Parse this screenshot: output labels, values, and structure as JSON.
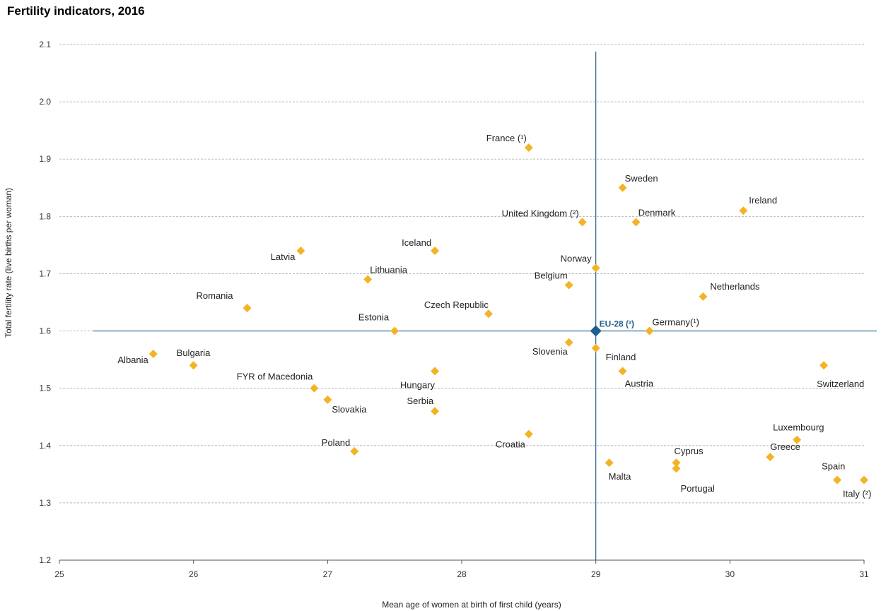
{
  "chart_data": {
    "type": "scatter",
    "title": "Fertility indicators, 2016",
    "xlabel": "Mean age of women at birth of first child (years)",
    "ylabel": "Total fertility rate (live births per woman)",
    "xlim": [
      25,
      31
    ],
    "ylim": [
      1.2,
      2.1
    ],
    "xticks": [
      "25",
      "26",
      "27",
      "28",
      "29",
      "30",
      "31"
    ],
    "yticks": [
      "1.2",
      "1.3",
      "1.4",
      "1.5",
      "1.6",
      "1.7",
      "1.8",
      "1.9",
      "2.0",
      "2.1"
    ],
    "grid": "horizontal",
    "colors": {
      "points": "#f4b324",
      "reference": "#1f5f8b",
      "grid": "#bbbbbb"
    },
    "reference": {
      "label": "EU-28 (²)",
      "x": 29.0,
      "y": 1.6
    },
    "points": [
      {
        "label": "France (¹)",
        "x": 28.5,
        "y": 1.92
      },
      {
        "label": "Sweden",
        "x": 29.2,
        "y": 1.85
      },
      {
        "label": "Ireland",
        "x": 30.1,
        "y": 1.81
      },
      {
        "label": "United Kingdom (²)",
        "x": 28.9,
        "y": 1.79
      },
      {
        "label": "Denmark",
        "x": 29.3,
        "y": 1.79
      },
      {
        "label": "Iceland",
        "x": 27.8,
        "y": 1.74
      },
      {
        "label": "Latvia",
        "x": 26.8,
        "y": 1.74
      },
      {
        "label": "Norway",
        "x": 29.0,
        "y": 1.71
      },
      {
        "label": "Lithuania",
        "x": 27.3,
        "y": 1.69
      },
      {
        "label": "Belgium",
        "x": 28.8,
        "y": 1.68
      },
      {
        "label": "Netherlands",
        "x": 29.8,
        "y": 1.66
      },
      {
        "label": "Romania",
        "x": 26.4,
        "y": 1.64
      },
      {
        "label": "Czech Republic",
        "x": 28.2,
        "y": 1.63
      },
      {
        "label": "Estonia",
        "x": 27.5,
        "y": 1.6
      },
      {
        "label": "Germany(¹)",
        "x": 29.4,
        "y": 1.6
      },
      {
        "label": "Slovenia",
        "x": 28.8,
        "y": 1.58
      },
      {
        "label": "Finland",
        "x": 29.0,
        "y": 1.57
      },
      {
        "label": "Albania",
        "x": 25.7,
        "y": 1.56
      },
      {
        "label": "Bulgaria",
        "x": 26.0,
        "y": 1.54
      },
      {
        "label": "Switzerland",
        "x": 30.7,
        "y": 1.54
      },
      {
        "label": "Hungary",
        "x": 27.8,
        "y": 1.53
      },
      {
        "label": "Austria",
        "x": 29.2,
        "y": 1.53
      },
      {
        "label": "FYR of Macedonia",
        "x": 26.9,
        "y": 1.5
      },
      {
        "label": "Slovakia",
        "x": 27.0,
        "y": 1.48
      },
      {
        "label": "Serbia",
        "x": 27.8,
        "y": 1.46
      },
      {
        "label": "Croatia",
        "x": 28.5,
        "y": 1.42
      },
      {
        "label": "Luxembourg",
        "x": 30.5,
        "y": 1.41
      },
      {
        "label": "Poland",
        "x": 27.2,
        "y": 1.39
      },
      {
        "label": "Greece",
        "x": 30.3,
        "y": 1.38
      },
      {
        "label": "Cyprus",
        "x": 29.6,
        "y": 1.37
      },
      {
        "label": "Malta",
        "x": 29.1,
        "y": 1.37
      },
      {
        "label": "Portugal",
        "x": 29.6,
        "y": 1.36
      },
      {
        "label": "Spain",
        "x": 30.8,
        "y": 1.34
      },
      {
        "label": "Italy (²)",
        "x": 31.0,
        "y": 1.34
      }
    ]
  }
}
